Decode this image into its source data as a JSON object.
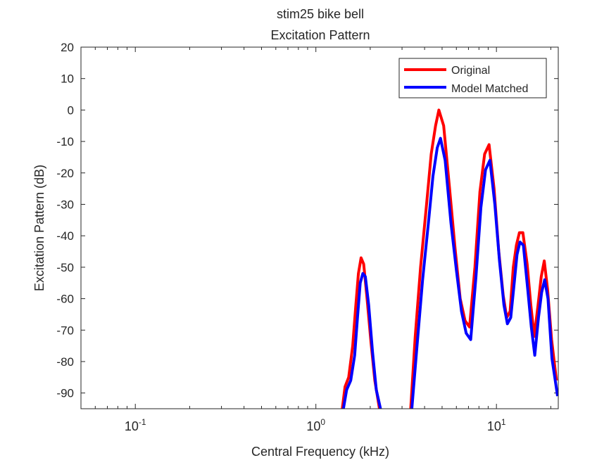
{
  "chart_data": {
    "type": "line",
    "title": "stim25 bike bell",
    "subtitle": "Excitation Pattern",
    "xlabel": "Central Frequency (kHz)",
    "ylabel": "Excitation Pattern (dB)",
    "xscale": "log",
    "xlim": [
      0.05,
      22
    ],
    "ylim": [
      -95,
      20
    ],
    "yticks": [
      20,
      10,
      0,
      -10,
      -20,
      -30,
      -40,
      -50,
      -60,
      -70,
      -80,
      -90
    ],
    "xticks": [
      {
        "value": 0.1,
        "base": "10",
        "exp": "-1"
      },
      {
        "value": 1,
        "base": "10",
        "exp": "0"
      },
      {
        "value": 10,
        "base": "10",
        "exp": "1"
      }
    ],
    "grid": false,
    "legend_position": "top-right",
    "series": [
      {
        "name": "Original",
        "color": "#ff0000",
        "x": [
          1.4,
          1.45,
          1.52,
          1.6,
          1.66,
          1.72,
          1.78,
          1.84,
          1.92,
          2.02,
          2.12,
          2.25,
          3.35,
          3.55,
          3.8,
          4.1,
          4.35,
          4.6,
          4.8,
          5.1,
          5.5,
          5.9,
          6.3,
          6.7,
          7.1,
          7.6,
          8.1,
          8.6,
          9.1,
          9.7,
          10.3,
          10.9,
          11.4,
          11.9,
          12.4,
          12.9,
          13.4,
          14.0,
          14.8,
          15.5,
          16.2,
          17.0,
          17.7,
          18.4,
          19.2,
          20.2,
          21.5
        ],
        "y": [
          -95,
          -88,
          -85,
          -75,
          -63,
          -52,
          -47,
          -49,
          -60,
          -74,
          -86,
          -95,
          -95,
          -72,
          -50,
          -30,
          -14,
          -5,
          0,
          -5,
          -25,
          -44,
          -60,
          -67,
          -69,
          -50,
          -26,
          -14,
          -11,
          -25,
          -45,
          -59,
          -66,
          -64,
          -50,
          -43,
          -39,
          -39,
          -49,
          -62,
          -72,
          -62,
          -53,
          -48,
          -57,
          -73,
          -86
        ]
      },
      {
        "name": "Model Matched",
        "color": "#0000ff",
        "x": [
          1.42,
          1.48,
          1.56,
          1.64,
          1.7,
          1.76,
          1.82,
          1.88,
          1.96,
          2.06,
          2.16,
          2.28,
          3.4,
          3.62,
          3.9,
          4.2,
          4.45,
          4.7,
          4.9,
          5.2,
          5.6,
          6.0,
          6.4,
          6.8,
          7.2,
          7.7,
          8.2,
          8.7,
          9.2,
          9.8,
          10.4,
          11.0,
          11.5,
          12.0,
          12.5,
          13.0,
          13.5,
          14.1,
          14.9,
          15.6,
          16.3,
          17.1,
          17.8,
          18.5,
          19.3,
          20.3,
          21.8
        ],
        "y": [
          -95,
          -89,
          -86,
          -78,
          -66,
          -55,
          -52,
          -53,
          -62,
          -77,
          -89,
          -95,
          -95,
          -76,
          -54,
          -36,
          -21,
          -12,
          -9,
          -16,
          -36,
          -51,
          -64,
          -71,
          -73,
          -53,
          -31,
          -19,
          -16,
          -30,
          -48,
          -62,
          -68,
          -66,
          -56,
          -46,
          -42,
          -43,
          -57,
          -69,
          -78,
          -66,
          -58,
          -54,
          -60,
          -79,
          -91
        ]
      }
    ]
  }
}
